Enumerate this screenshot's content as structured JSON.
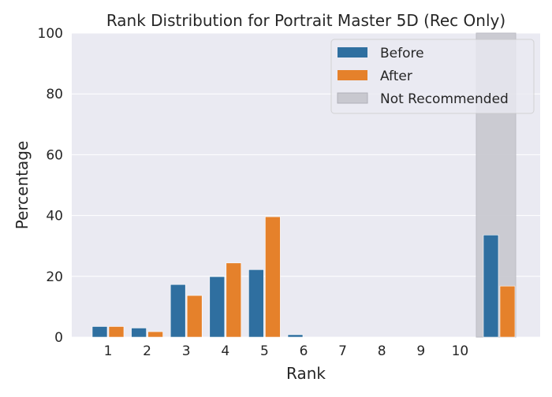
{
  "chart_data": {
    "type": "bar",
    "title": "Rank Distribution for Portrait Master 5D (Rec Only)",
    "xlabel": "Rank",
    "ylabel": "Percentage",
    "ylim": [
      0,
      100
    ],
    "y_ticks": [
      0,
      20,
      40,
      60,
      80,
      100
    ],
    "categories": [
      "1",
      "2",
      "3",
      "4",
      "5",
      "6",
      "7",
      "8",
      "9",
      "10",
      ""
    ],
    "series": [
      {
        "name": "Before",
        "color": "#2f6fa0",
        "values": [
          3.5,
          3.0,
          17.3,
          19.9,
          22.2,
          0.8,
          0,
          0,
          0,
          0,
          33.6
        ]
      },
      {
        "name": "After",
        "color": "#e5812b",
        "values": [
          3.5,
          1.8,
          13.7,
          24.4,
          39.6,
          0,
          0,
          0,
          0,
          0,
          16.8
        ]
      }
    ],
    "highlight": {
      "label": "Not Recommended",
      "category_index": 10,
      "color": "#c8c8cf"
    },
    "legend_position": "top-right",
    "grid": true,
    "background": "#eaeaf2"
  }
}
